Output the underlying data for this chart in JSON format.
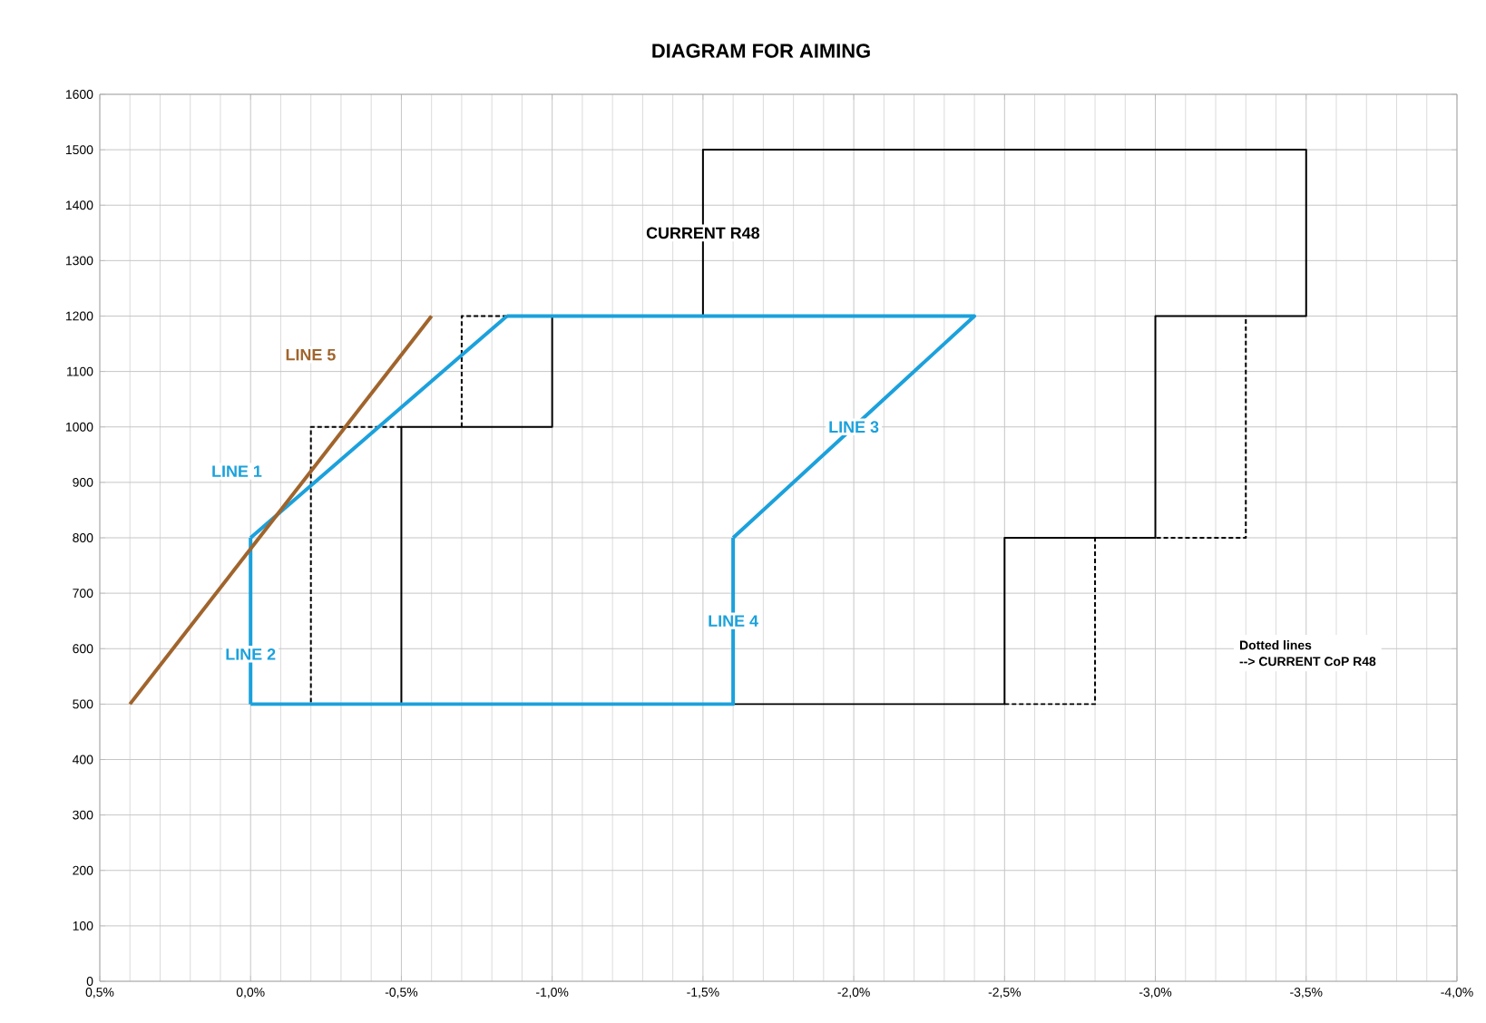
{
  "chart_data": {
    "type": "line",
    "title": "DIAGRAM FOR AIMING",
    "xlim": [
      0.5,
      -4.0
    ],
    "xticks": [
      {
        "value": 0.5,
        "label": "0,5%"
      },
      {
        "value": 0.0,
        "label": "0,0%"
      },
      {
        "value": -0.5,
        "label": "-0,5%"
      },
      {
        "value": -1.0,
        "label": "-1,0%"
      },
      {
        "value": -1.5,
        "label": "-1,5%"
      },
      {
        "value": -2.0,
        "label": "-2,0%"
      },
      {
        "value": -2.5,
        "label": "-2,5%"
      },
      {
        "value": -3.0,
        "label": "-3,0%"
      },
      {
        "value": -3.5,
        "label": "-3,5%"
      },
      {
        "value": -4.0,
        "label": "-4,0%"
      }
    ],
    "ylim": [
      0,
      1600
    ],
    "yticks": [
      0,
      100,
      200,
      300,
      400,
      500,
      600,
      700,
      800,
      900,
      1000,
      1100,
      1200,
      1300,
      1400,
      1500,
      1600
    ],
    "grid": true,
    "annotations": [
      "Dotted lines",
      "--> CURRENT CoP R48"
    ],
    "series": [
      {
        "color": "#000000",
        "line_style": "solid",
        "x": [
          -0.5,
          -0.5,
          -1.0,
          -1.0
        ],
        "values": [
          500,
          1000,
          1000,
          1200
        ]
      },
      {
        "name": "CURRENT R48",
        "color": "#000000",
        "line_style": "solid",
        "x": [
          -1.5,
          -1.5,
          -3.5,
          -3.5,
          -3.0,
          -3.0,
          -2.5,
          -2.5,
          -1.6
        ],
        "values": [
          1200,
          1500,
          1500,
          1200,
          1200,
          800,
          800,
          500,
          500
        ]
      },
      {
        "color": "#000000",
        "line_style": "dashed",
        "x": [
          -0.5,
          -0.2,
          -0.2
        ],
        "values": [
          1000,
          1000,
          500
        ]
      },
      {
        "color": "#000000",
        "line_style": "dashed",
        "x": [
          -0.7,
          -0.7,
          -0.85
        ],
        "values": [
          1000,
          1200,
          1200
        ]
      },
      {
        "color": "#000000",
        "line_style": "dashed",
        "x": [
          -2.5,
          -2.8,
          -2.8,
          -3.3,
          -3.3
        ],
        "values": [
          500,
          500,
          800,
          800,
          1200
        ]
      },
      {
        "name": "LINE 1",
        "color": "#1ba1dc",
        "line_style": "solid",
        "x": [
          0.0,
          -0.85
        ],
        "values": [
          800,
          1200
        ]
      },
      {
        "name": "LINE 2",
        "color": "#1ba1dc",
        "line_style": "solid",
        "x": [
          0.0,
          0.0
        ],
        "values": [
          500,
          800
        ]
      },
      {
        "name": "LINE 3",
        "color": "#1ba1dc",
        "line_style": "solid",
        "x": [
          -1.6,
          -2.4,
          -0.85
        ],
        "values": [
          800,
          1200,
          1200
        ]
      },
      {
        "name": "LINE 4",
        "color": "#1ba1dc",
        "line_style": "solid",
        "x": [
          -1.6,
          -1.6,
          0.0
        ],
        "values": [
          800,
          500,
          500
        ]
      },
      {
        "name": "LINE 5",
        "color": "#a0642c",
        "line_style": "solid",
        "x": [
          0.4,
          -0.6
        ],
        "values": [
          500,
          1200
        ]
      }
    ]
  }
}
